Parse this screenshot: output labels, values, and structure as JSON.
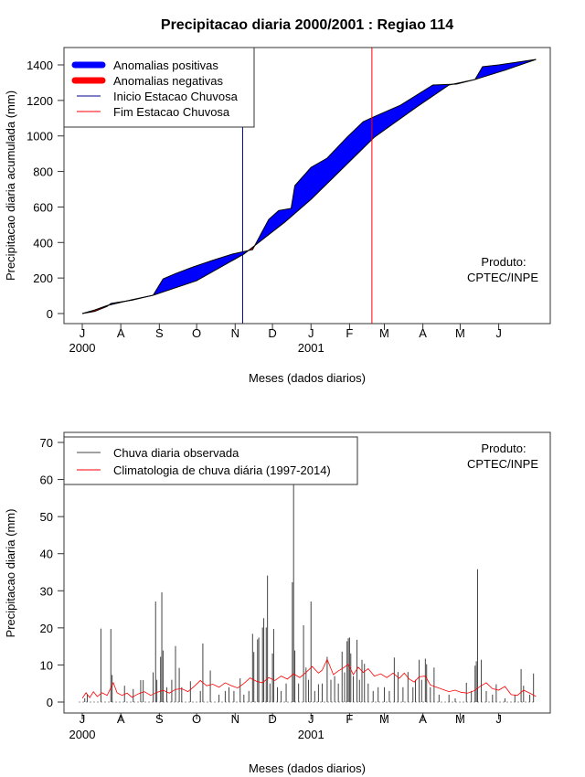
{
  "title": "Precipitacao diaria 2000/2001 : Regiao 114",
  "colors": {
    "positive": "#0000ff",
    "negative": "#ff0000",
    "start_line": "#00008b",
    "end_line": "#ff0000",
    "bars": "#444444",
    "clim": "#ff0000"
  },
  "chart_data": [
    {
      "type": "area",
      "title": "Precipitacao diaria 2000/2001 : Regiao 114",
      "xlabel": "Meses (dados diarios)",
      "ylabel": "Precipitacao diaria acumulada (mm)",
      "ylim": [
        0,
        1450
      ],
      "yticks": [
        0,
        200,
        400,
        600,
        800,
        1000,
        1200,
        1400
      ],
      "xlim_days": [
        0,
        365
      ],
      "month_ticks": [
        {
          "label": "J",
          "day": 0
        },
        {
          "label": "A",
          "day": 31
        },
        {
          "label": "S",
          "day": 62
        },
        {
          "label": "O",
          "day": 92
        },
        {
          "label": "N",
          "day": 123
        },
        {
          "label": "D",
          "day": 153
        },
        {
          "label": "J",
          "day": 184
        },
        {
          "label": "F",
          "day": 215
        },
        {
          "label": "M",
          "day": 243
        },
        {
          "label": "A",
          "day": 274
        },
        {
          "label": "M",
          "day": 304
        },
        {
          "label": "J",
          "day": 335
        }
      ],
      "year_labels": [
        {
          "label": "2000",
          "day": 0
        },
        {
          "label": "2001",
          "day": 184
        }
      ],
      "observed_cumulative": [
        [
          0,
          0
        ],
        [
          10,
          12
        ],
        [
          20,
          40
        ],
        [
          23,
          57
        ],
        [
          40,
          75
        ],
        [
          57,
          103
        ],
        [
          65,
          195
        ],
        [
          75,
          225
        ],
        [
          89,
          262
        ],
        [
          105,
          300
        ],
        [
          121,
          335
        ],
        [
          137,
          360
        ],
        [
          150,
          530
        ],
        [
          158,
          580
        ],
        [
          168,
          592
        ],
        [
          171,
          720
        ],
        [
          184,
          823
        ],
        [
          197,
          875
        ],
        [
          213,
          993
        ],
        [
          226,
          1080
        ],
        [
          236,
          1112
        ],
        [
          256,
          1173
        ],
        [
          282,
          1287
        ],
        [
          301,
          1292
        ],
        [
          316,
          1318
        ],
        [
          322,
          1390
        ],
        [
          335,
          1400
        ],
        [
          365,
          1431
        ]
      ],
      "climatology_cumulative": [
        [
          0,
          0
        ],
        [
          10,
          20
        ],
        [
          20,
          45
        ],
        [
          40,
          78
        ],
        [
          57,
          103
        ],
        [
          92,
          185
        ],
        [
          130,
          335
        ],
        [
          163,
          515
        ],
        [
          184,
          643
        ],
        [
          205,
          787
        ],
        [
          235,
          993
        ],
        [
          269,
          1163
        ],
        [
          295,
          1287
        ],
        [
          316,
          1318
        ],
        [
          340,
          1370
        ],
        [
          365,
          1431
        ]
      ],
      "rainy_season_start_day": 129,
      "rainy_season_end_day": 233,
      "legend": {
        "position": "top-left",
        "items": [
          "Anomalias positivas",
          "Anomalias negativas",
          "Inicio Estacao Chuvosa",
          "Fim Estacao Chuvosa"
        ]
      },
      "annotation": [
        "Produto:",
        "CPTEC/INPE"
      ]
    },
    {
      "type": "bar",
      "xlabel": "Meses (dados diarios)",
      "ylabel": "Precipitacao diaria (mm)",
      "ylim": [
        0,
        70
      ],
      "yticks": [
        0,
        10,
        20,
        30,
        40,
        50,
        60,
        70
      ],
      "observed_daily": [
        [
          2,
          1
        ],
        [
          4,
          2
        ],
        [
          15,
          19.8
        ],
        [
          23,
          19.7
        ],
        [
          24,
          7.3
        ],
        [
          34,
          4.4
        ],
        [
          41,
          3.5
        ],
        [
          47,
          5.9
        ],
        [
          49,
          5.9
        ],
        [
          57,
          8
        ],
        [
          59,
          27.1
        ],
        [
          60,
          6
        ],
        [
          63,
          12.2
        ],
        [
          64,
          29.6
        ],
        [
          65,
          13.9
        ],
        [
          68,
          4
        ],
        [
          72,
          6
        ],
        [
          75,
          15.1
        ],
        [
          78,
          9.2
        ],
        [
          80,
          4
        ],
        [
          87,
          5.6
        ],
        [
          95,
          3
        ],
        [
          97,
          15.8
        ],
        [
          103,
          8.5
        ],
        [
          110,
          2
        ],
        [
          115,
          3
        ],
        [
          118,
          4
        ],
        [
          122,
          3
        ],
        [
          127,
          6.4
        ],
        [
          130,
          2
        ],
        [
          134,
          3
        ],
        [
          137,
          18.4
        ],
        [
          138,
          13.5
        ],
        [
          141,
          16.9
        ],
        [
          142,
          17.4
        ],
        [
          145,
          20.1
        ],
        [
          146,
          22.6
        ],
        [
          148,
          20.1
        ],
        [
          149,
          34.1
        ],
        [
          151,
          5
        ],
        [
          153,
          13.1
        ],
        [
          154,
          19.7
        ],
        [
          157,
          4
        ],
        [
          160,
          3
        ],
        [
          164,
          5
        ],
        [
          169,
          32.3
        ],
        [
          170,
          65
        ],
        [
          171,
          13.9
        ],
        [
          174,
          5
        ],
        [
          178,
          20.7
        ],
        [
          180,
          9.3
        ],
        [
          182,
          6
        ],
        [
          184,
          27.1
        ],
        [
          187,
          3
        ],
        [
          190,
          4.8
        ],
        [
          193,
          5
        ],
        [
          197,
          12.2
        ],
        [
          200,
          6
        ],
        [
          203,
          7
        ],
        [
          206,
          5
        ],
        [
          209,
          13.6
        ],
        [
          211,
          8
        ],
        [
          213,
          16.4
        ],
        [
          214,
          17.2
        ],
        [
          215,
          17.4
        ],
        [
          216,
          13.1
        ],
        [
          218,
          7
        ],
        [
          221,
          16.8
        ],
        [
          223,
          6
        ],
        [
          225,
          11.4
        ],
        [
          227,
          10.3
        ],
        [
          230,
          5
        ],
        [
          234,
          3
        ],
        [
          238,
          4
        ],
        [
          243,
          4
        ],
        [
          247,
          3
        ],
        [
          251,
          12
        ],
        [
          254,
          8.1
        ],
        [
          258,
          4
        ],
        [
          262,
          8.1
        ],
        [
          266,
          4
        ],
        [
          268,
          6
        ],
        [
          271,
          11.4
        ],
        [
          273,
          6
        ],
        [
          276,
          11.7
        ],
        [
          277,
          10.2
        ],
        [
          280,
          4
        ],
        [
          283,
          9.3
        ],
        [
          287,
          2
        ],
        [
          295,
          2
        ],
        [
          300,
          1
        ],
        [
          309,
          5.2
        ],
        [
          313,
          3
        ],
        [
          316,
          9.8
        ],
        [
          317,
          11
        ],
        [
          318,
          35.8
        ],
        [
          321,
          11.4
        ],
        [
          325,
          3
        ],
        [
          330,
          2
        ],
        [
          333,
          4.8
        ],
        [
          340,
          1
        ],
        [
          348,
          2
        ],
        [
          353,
          8.9
        ],
        [
          355,
          4.4
        ],
        [
          360,
          2
        ],
        [
          363,
          7.7
        ]
      ],
      "climatology_daily": [
        [
          0,
          1
        ],
        [
          3,
          2.5
        ],
        [
          6,
          1.2
        ],
        [
          9,
          2.8
        ],
        [
          12,
          1.5
        ],
        [
          16,
          2.5
        ],
        [
          20,
          1.8
        ],
        [
          25,
          5.2
        ],
        [
          28,
          2.5
        ],
        [
          32,
          1.8
        ],
        [
          36,
          2.4
        ],
        [
          40,
          1.3
        ],
        [
          45,
          2.2
        ],
        [
          50,
          2.8
        ],
        [
          55,
          1.8
        ],
        [
          60,
          2.6
        ],
        [
          65,
          3.2
        ],
        [
          70,
          2.4
        ],
        [
          75,
          3.4
        ],
        [
          80,
          3.6
        ],
        [
          85,
          2.8
        ],
        [
          90,
          4.2
        ],
        [
          95,
          5.8
        ],
        [
          100,
          4.4
        ],
        [
          105,
          4.8
        ],
        [
          110,
          4
        ],
        [
          115,
          5.2
        ],
        [
          120,
          4.4
        ],
        [
          125,
          3.8
        ],
        [
          130,
          5
        ],
        [
          135,
          6.5
        ],
        [
          140,
          5.6
        ],
        [
          145,
          5.2
        ],
        [
          150,
          6.6
        ],
        [
          155,
          5.8
        ],
        [
          160,
          7
        ],
        [
          165,
          6.2
        ],
        [
          170,
          7.6
        ],
        [
          175,
          6.6
        ],
        [
          180,
          8
        ],
        [
          185,
          9.6
        ],
        [
          190,
          7.8
        ],
        [
          193,
          8.6
        ],
        [
          197,
          11.5
        ],
        [
          202,
          7.4
        ],
        [
          206,
          8.4
        ],
        [
          210,
          9.2
        ],
        [
          214,
          10.2
        ],
        [
          218,
          7.4
        ],
        [
          222,
          9.4
        ],
        [
          226,
          8
        ],
        [
          230,
          9
        ],
        [
          235,
          7
        ],
        [
          240,
          7.6
        ],
        [
          245,
          6.6
        ],
        [
          250,
          7.8
        ],
        [
          255,
          6.4
        ],
        [
          259,
          7.8
        ],
        [
          263,
          6.2
        ],
        [
          267,
          5.4
        ],
        [
          271,
          6.8
        ],
        [
          276,
          7
        ],
        [
          280,
          4.6
        ],
        [
          285,
          4
        ],
        [
          290,
          3.4
        ],
        [
          295,
          2.8
        ],
        [
          300,
          3.2
        ],
        [
          305,
          2.6
        ],
        [
          310,
          2.4
        ],
        [
          315,
          3
        ],
        [
          320,
          4.2
        ],
        [
          325,
          5.2
        ],
        [
          330,
          3.6
        ],
        [
          335,
          3.2
        ],
        [
          340,
          4.2
        ],
        [
          345,
          2
        ],
        [
          350,
          1.8
        ],
        [
          355,
          3.2
        ],
        [
          360,
          2.4
        ],
        [
          365,
          1.5
        ]
      ],
      "legend": {
        "position": "top-left",
        "items": [
          "Chuva diaria observada",
          "Climatologia de chuva diária (1997-2014)"
        ]
      },
      "annotation": [
        "Produto:",
        "CPTEC/INPE"
      ]
    }
  ]
}
